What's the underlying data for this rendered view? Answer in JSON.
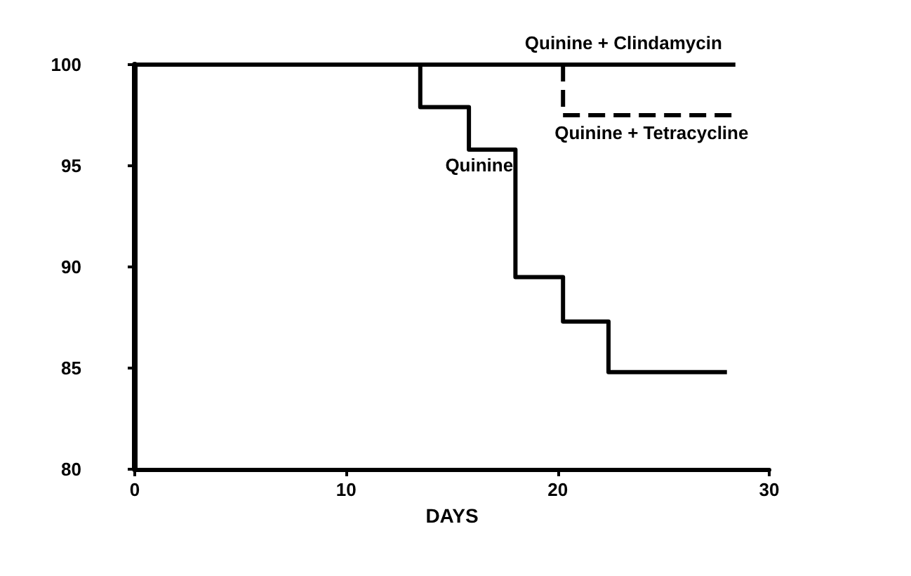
{
  "chart_data": {
    "type": "step",
    "xlabel": "DAYS",
    "xlim": [
      0,
      30
    ],
    "xticks": [
      0,
      10,
      20,
      30
    ],
    "ylim": [
      80,
      100
    ],
    "yticks": [
      80,
      85,
      90,
      95,
      100
    ],
    "grid": false,
    "legend": false,
    "marker": "none",
    "series": [
      {
        "name": "Quinine + Clindamycin",
        "color": "#000000",
        "line_style": "solid",
        "x": [
          0,
          28.4
        ],
        "values": [
          100,
          100
        ]
      },
      {
        "name": "Quinine + Tetracycline",
        "color": "#000000",
        "line_style": "dashed",
        "x": [
          20.25,
          20.25,
          28.4
        ],
        "values": [
          100,
          97.5,
          97.5
        ]
      },
      {
        "name": "Quinine",
        "color": "#000000",
        "line_style": "solid",
        "x": [
          13.5,
          13.5,
          15.8,
          18.0,
          20.25,
          22.4,
          28.0
        ],
        "values": [
          100,
          97.9,
          95.8,
          89.5,
          87.3,
          84.8,
          84.8
        ]
      }
    ]
  }
}
